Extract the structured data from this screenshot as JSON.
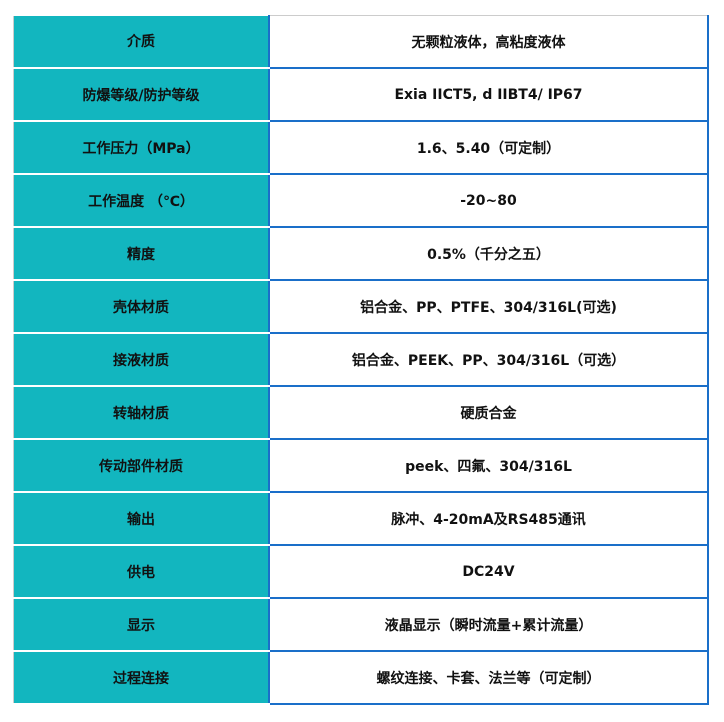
{
  "rows": [
    {
      "label": "介质",
      "value": "无颗粒液体，高粘度液体"
    },
    {
      "label": "防爆等级/防护等级",
      "value": "Exia IICT5, d IIBT4/ IP67"
    },
    {
      "label": "工作压力（MPa）",
      "value": "1.6、5.40（可定制）"
    },
    {
      "label": "工作温度 （℃）",
      "value": "-20~80"
    },
    {
      "label": "精度",
      "value": "0.5%（千分之五）"
    },
    {
      "label": "壳体材质",
      "value": "铝合金、PP、PTFE、304/316L(可选)"
    },
    {
      "label": "接液材质",
      "value": "铝合金、PEEK、PP、304/316L（可选）"
    },
    {
      "label": "转轴材质",
      "value": "硬质合金"
    },
    {
      "label": "传动部件材质",
      "value": "peek、四氟、304/316L"
    },
    {
      "label": "输出",
      "value": "脉冲、4-20mA及RS485通讯"
    },
    {
      "label": "供电",
      "value": "DC24V"
    },
    {
      "label": "显示",
      "value": "液晶显示（瞬时流量+累计流量）"
    },
    {
      "label": "过程连接",
      "value": "螺纹连接、卡套、法兰等（可定制）"
    }
  ],
  "colors": {
    "label_bg": "#12b6bf",
    "border": "#1a6fc9"
  }
}
